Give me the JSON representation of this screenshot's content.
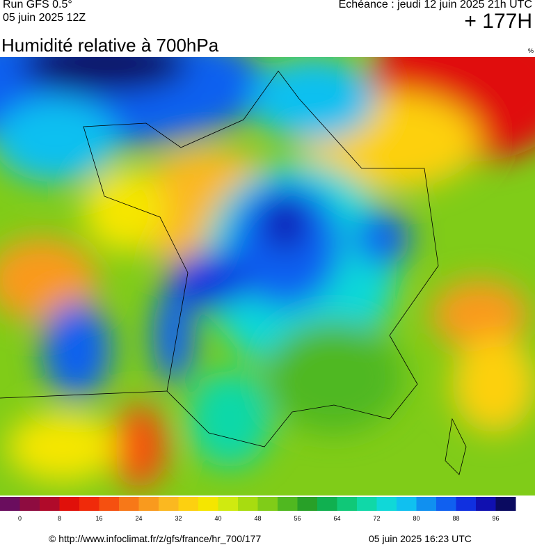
{
  "header": {
    "run": "Run GFS 0.5°",
    "run_date": "05 juin 2025 12Z",
    "echeance": "Echéance : jeudi 12 juin 2025 21h UTC",
    "lead": "+ 177H",
    "title": "Humidité relative à 700hPa",
    "unit": "%"
  },
  "colorbar": {
    "range": [
      -4,
      100
    ],
    "ticks": [
      0,
      8,
      16,
      24,
      32,
      40,
      48,
      56,
      64,
      72,
      80,
      88,
      96
    ],
    "colors": [
      "#6a0d5e",
      "#8e0c40",
      "#b00a2a",
      "#e0100a",
      "#f02a0a",
      "#f55010",
      "#f77818",
      "#f99a1e",
      "#fbb820",
      "#fdd010",
      "#f5e600",
      "#d0ea10",
      "#a8dc10",
      "#80cc18",
      "#50b820",
      "#28a028",
      "#10b050",
      "#10c878",
      "#10d8a8",
      "#10d8d8",
      "#10c0f0",
      "#1090f0",
      "#1060f0",
      "#1030e0",
      "#1010b0",
      "#0a0a60"
    ]
  },
  "footer": {
    "source": "© http://www.infoclimat.fr/z/gfs/france/hr_700/177",
    "generated": "05 juin 2025 16:23 UTC"
  }
}
